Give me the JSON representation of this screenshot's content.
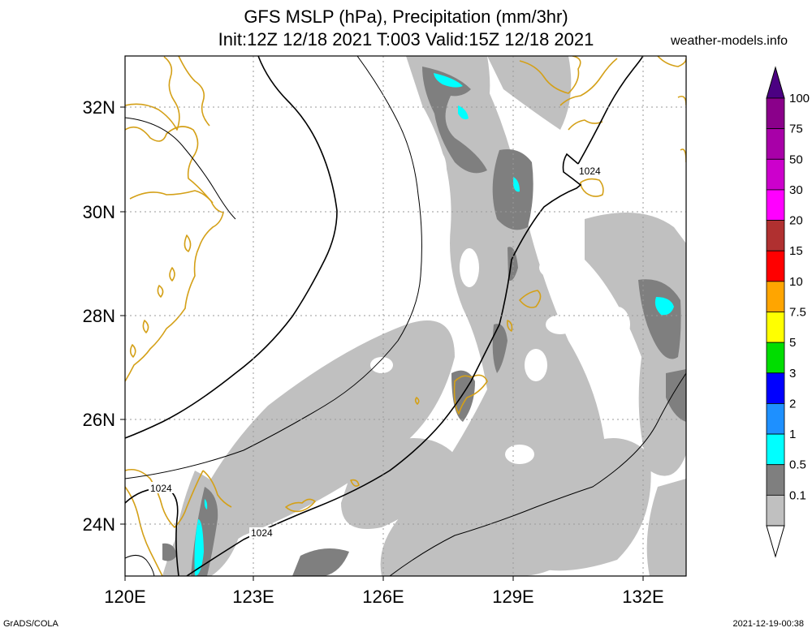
{
  "title": {
    "line1": "GFS MSLP (hPa), Precipitation (mm/3hr)",
    "line2": "Init:12Z 12/18 2021 T:003 Valid:15Z 12/18 2021"
  },
  "source_label": "weather-models.info",
  "footer": {
    "left": "GrADS/COLA",
    "right": "2021-12-19-00:38"
  },
  "map": {
    "lon_range": [
      120,
      133
    ],
    "lat_range": [
      23,
      33
    ],
    "x_ticks": [
      "120E",
      "123E",
      "126E",
      "129E",
      "132E"
    ],
    "y_ticks": [
      "32N",
      "30N",
      "28N",
      "26N",
      "24N"
    ],
    "gridlines": "dotted",
    "isobar_labels": [
      "1024",
      "1024",
      "1024"
    ]
  },
  "colorbar": {
    "levels": [
      "100",
      "75",
      "50",
      "30",
      "20",
      "15",
      "10",
      "7.5",
      "5",
      "3",
      "2",
      "1",
      "0.5",
      "0.1"
    ],
    "colors": [
      "#8a008a",
      "#a800a8",
      "#cc00cc",
      "#ff00ff",
      "#b03030",
      "#ff0000",
      "#ffa500",
      "#ffff00",
      "#00dd00",
      "#0000ff",
      "#1e90ff",
      "#00ffff",
      "#7f7f7f",
      "#c0c0c0"
    ],
    "top_color": "#4b0082"
  },
  "colors": {
    "coast": "#d4a017",
    "precip_light": "#c0c0c0",
    "precip_mid": "#7f7f7f",
    "precip_cyan": "#00ffff",
    "isobar": "#000000"
  }
}
